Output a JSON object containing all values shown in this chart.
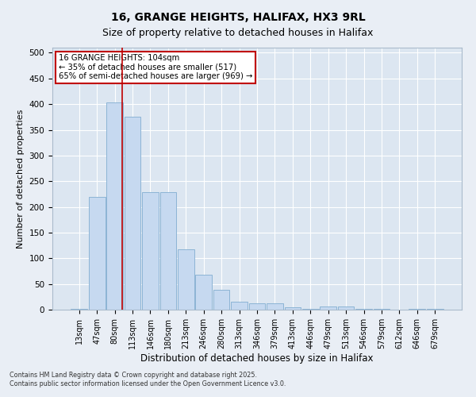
{
  "title1": "16, GRANGE HEIGHTS, HALIFAX, HX3 9RL",
  "title2": "Size of property relative to detached houses in Halifax",
  "xlabel": "Distribution of detached houses by size in Halifax",
  "ylabel": "Number of detached properties",
  "bar_color": "#c6d9f0",
  "bar_edge_color": "#8cb4d5",
  "background_color": "#dce6f1",
  "grid_color": "#ffffff",
  "fig_background": "#e9eef5",
  "categories": [
    "13sqm",
    "47sqm",
    "80sqm",
    "113sqm",
    "146sqm",
    "180sqm",
    "213sqm",
    "246sqm",
    "280sqm",
    "313sqm",
    "346sqm",
    "379sqm",
    "413sqm",
    "446sqm",
    "479sqm",
    "513sqm",
    "546sqm",
    "579sqm",
    "612sqm",
    "646sqm",
    "679sqm"
  ],
  "values": [
    2,
    220,
    403,
    375,
    228,
    228,
    118,
    68,
    38,
    16,
    13,
    12,
    5,
    1,
    6,
    6,
    1,
    1,
    0,
    1,
    1
  ],
  "ylim": [
    0,
    510
  ],
  "yticks": [
    0,
    50,
    100,
    150,
    200,
    250,
    300,
    350,
    400,
    450,
    500
  ],
  "vline_color": "#c00000",
  "vline_pos": 2.425,
  "annotation_title": "16 GRANGE HEIGHTS: 104sqm",
  "annotation_line1": "← 35% of detached houses are smaller (517)",
  "annotation_line2": "65% of semi-detached houses are larger (969) →",
  "annotation_box_color": "#c00000",
  "footnote1": "Contains HM Land Registry data © Crown copyright and database right 2025.",
  "footnote2": "Contains public sector information licensed under the Open Government Licence v3.0."
}
